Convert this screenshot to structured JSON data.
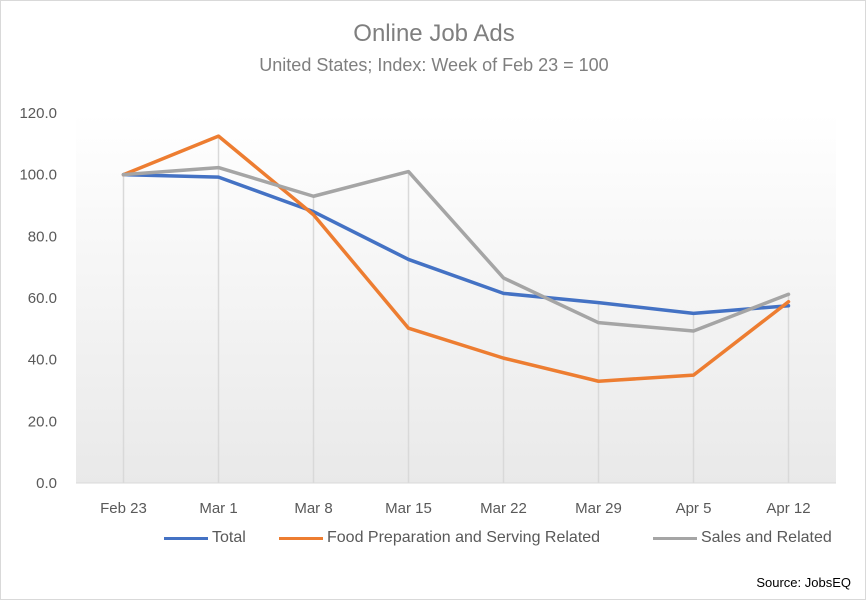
{
  "chart_data": {
    "type": "line",
    "title": "Online Job Ads",
    "subtitle": "United States; Index: Week of Feb 23 = 100",
    "categories": [
      "Feb 23",
      "Mar 1",
      "Mar 8",
      "Mar 15",
      "Mar 22",
      "Mar 29",
      "Apr 5",
      "Apr 12"
    ],
    "ylim": [
      0,
      120
    ],
    "yticks": [
      "0.0",
      "20.0",
      "40.0",
      "60.0",
      "80.0",
      "100.0",
      "120.0"
    ],
    "grid": "vertical drop lines",
    "legend": "bottom",
    "series": [
      {
        "name": "Total",
        "color": "#4472c4",
        "values": [
          100.0,
          99.2,
          88.0,
          72.5,
          61.5,
          58.5,
          55.0,
          57.5
        ]
      },
      {
        "name": "Food Preparation and Serving Related",
        "color": "#ed7d31",
        "values": [
          100.0,
          112.5,
          87.0,
          50.2,
          40.5,
          33.0,
          35.0,
          58.8
        ]
      },
      {
        "name": "Sales and Related",
        "color": "#a5a5a5",
        "values": [
          100.0,
          102.3,
          93.0,
          101.0,
          66.5,
          52.0,
          49.3,
          61.2
        ]
      }
    ],
    "source": "Source: JobsEQ"
  }
}
